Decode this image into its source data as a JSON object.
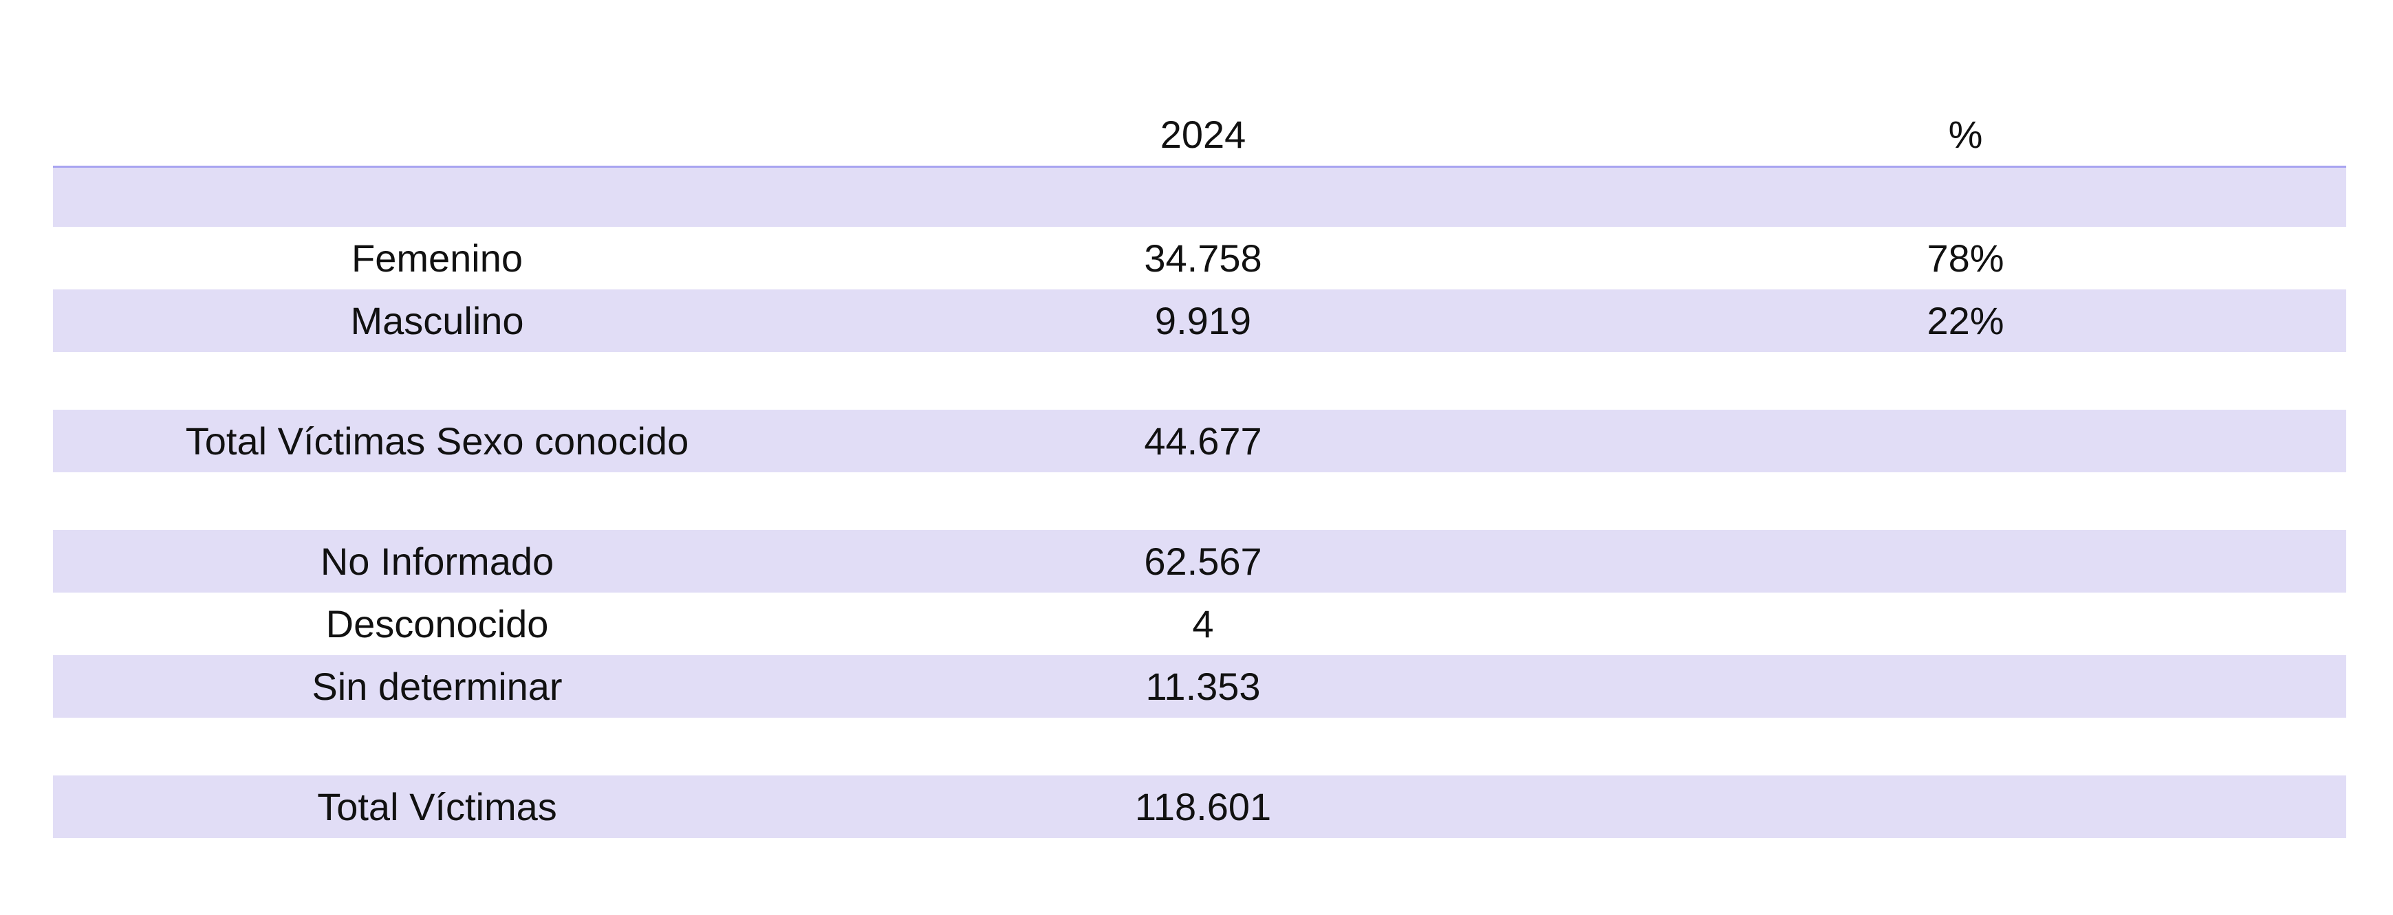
{
  "table": {
    "header": {
      "label": "",
      "year": "2024",
      "pct": "%"
    },
    "rows": [
      {
        "label": "",
        "value": "",
        "pct": ""
      },
      {
        "label": "Femenino",
        "value": "34.758",
        "pct": "78%"
      },
      {
        "label": "Masculino",
        "value": "9.919",
        "pct": "22%"
      },
      {
        "label": "",
        "value": "",
        "pct": ""
      },
      {
        "label": "Total Víctimas Sexo conocido",
        "value": "44.677",
        "pct": ""
      },
      {
        "label": "",
        "value": "",
        "pct": ""
      },
      {
        "label": "No Informado",
        "value": "62.567",
        "pct": ""
      },
      {
        "label": "Desconocido",
        "value": "4",
        "pct": ""
      },
      {
        "label": "Sin determinar",
        "value": "11.353",
        "pct": ""
      },
      {
        "label": "",
        "value": "",
        "pct": ""
      },
      {
        "label": "Total Víctimas",
        "value": "118.601",
        "pct": ""
      }
    ]
  },
  "colors": {
    "row_shade": "#e1ddf6",
    "header_rule": "#a8a4f0"
  }
}
